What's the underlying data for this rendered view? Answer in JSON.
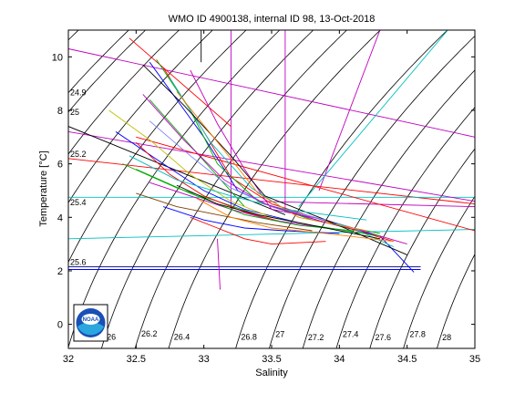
{
  "chart_data": {
    "type": "line",
    "title": "WMO ID 4900138, internal ID 98, 13-Oct-2018",
    "xlabel": "Salinity",
    "ylabel": "Temperature [°C]",
    "xlim": [
      32,
      35
    ],
    "ylim": [
      -0.9,
      11
    ],
    "xticks": [
      "32",
      "32.5",
      "33",
      "33.5",
      "34",
      "34.5",
      "35"
    ],
    "yticks": [
      "0",
      "2",
      "4",
      "6",
      "8",
      "10"
    ],
    "grid": false,
    "legend": "none",
    "density_contours": [
      {
        "label": "24.6",
        "value": 24.6
      },
      {
        "label": "24.9",
        "value": 24.9
      },
      {
        "label": "25",
        "value": 25.0
      },
      {
        "label": "25.2",
        "value": 25.2
      },
      {
        "label": "25.4",
        "value": 25.4
      },
      {
        "label": "25.6",
        "value": 25.6
      },
      {
        "label": "25.8",
        "value": 25.8
      },
      {
        "label": "26",
        "value": 26.0
      },
      {
        "label": "26.2",
        "value": 26.2
      },
      {
        "label": "26.4",
        "value": 26.4
      },
      {
        "label": "26.8",
        "value": 26.8
      },
      {
        "label": "27",
        "value": 27.0
      },
      {
        "label": "27.2",
        "value": 27.2
      },
      {
        "label": "27.4",
        "value": 27.4
      },
      {
        "label": "27.6",
        "value": 27.6
      },
      {
        "label": "27.8",
        "value": 27.8
      },
      {
        "label": "28",
        "value": 28.0
      }
    ],
    "contour_color": "#000000",
    "series_colors": [
      "#0000ff",
      "#ff0000",
      "#00aa00",
      "#00bfbf",
      "#bf00bf",
      "#bfbf00",
      "#000000",
      "#ff7f00",
      "#7f3f00",
      "#7f7fff"
    ],
    "series": [
      {
        "color": "#bf00bf",
        "points": [
          [
            32,
            10.3
          ],
          [
            35,
            7.0
          ]
        ]
      },
      {
        "color": "#ff0000",
        "points": [
          [
            32,
            6.2
          ],
          [
            35,
            4.5
          ]
        ]
      },
      {
        "color": "#00bfbf",
        "points": [
          [
            32,
            4.75
          ],
          [
            35,
            4.75
          ]
        ]
      },
      {
        "color": "#00bfbf",
        "points": [
          [
            32,
            3.2
          ],
          [
            35,
            3.55
          ]
        ]
      },
      {
        "color": "#000080",
        "points": [
          [
            32,
            2.15
          ],
          [
            34.6,
            2.15
          ]
        ]
      },
      {
        "color": "#0000ff",
        "points": [
          [
            32,
            2.05
          ],
          [
            34.6,
            2.05
          ]
        ]
      },
      {
        "color": "#bf00bf",
        "points": [
          [
            32,
            7.2
          ],
          [
            35,
            4.6
          ]
        ]
      },
      {
        "color": "#000000",
        "points": [
          [
            32,
            7.4
          ],
          [
            33.6,
            4.1
          ]
        ]
      },
      {
        "color": "#bf00bf",
        "points": [
          [
            33.6,
            4.2
          ],
          [
            33.6,
            11
          ]
        ]
      },
      {
        "color": "#bf00bf",
        "points": [
          [
            33.85,
            5.0
          ],
          [
            34.3,
            11
          ]
        ]
      },
      {
        "color": "#00bfbf",
        "points": [
          [
            33.7,
            4.4
          ],
          [
            34.8,
            11
          ]
        ]
      },
      {
        "color": "#bf00bf",
        "points": [
          [
            33.2,
            4.3
          ],
          [
            33.2,
            11
          ]
        ]
      },
      {
        "color": "#000000",
        "points": [
          [
            32.98,
            9.8
          ],
          [
            32.98,
            11
          ]
        ]
      },
      {
        "color": "#ff0000",
        "points": [
          [
            32.45,
            10.7
          ],
          [
            33.2,
            7.4
          ]
        ]
      },
      {
        "color": "#bf00bf",
        "points": [
          [
            33.1,
            3.2
          ],
          [
            33.12,
            1.3
          ]
        ]
      },
      {
        "color": "#bf00bf",
        "points": [
          [
            33.4,
            4.6
          ],
          [
            35,
            4.4
          ]
        ]
      },
      {
        "color": "#00aa00",
        "points": [
          [
            32.6,
            8.4
          ],
          [
            33.3,
            4.4
          ]
        ]
      },
      {
        "color": "#ff0000",
        "points": [
          [
            32.5,
            7.0
          ],
          [
            35,
            3.5
          ]
        ]
      },
      {
        "color": "#0000ff",
        "points": [
          [
            32.6,
            9.8
          ],
          [
            33.0,
            7.0
          ],
          [
            33.25,
            5.0
          ],
          [
            33.5,
            4.4
          ],
          [
            33.9,
            3.8
          ],
          [
            34.3,
            3.3
          ],
          [
            34.55,
            1.95
          ]
        ]
      },
      {
        "color": "#ff0000",
        "points": [
          [
            32.7,
            9.6
          ],
          [
            33.0,
            7.2
          ],
          [
            33.2,
            5.5
          ],
          [
            33.5,
            4.5
          ],
          [
            34.0,
            3.7
          ],
          [
            34.4,
            3.1
          ]
        ]
      },
      {
        "color": "#00aa00",
        "points": [
          [
            32.65,
            9.9
          ],
          [
            32.9,
            8.0
          ],
          [
            33.1,
            6.0
          ],
          [
            33.4,
            4.6
          ],
          [
            33.8,
            3.9
          ],
          [
            34.3,
            3.4
          ]
        ]
      },
      {
        "color": "#bf00bf",
        "points": [
          [
            32.9,
            9.5
          ],
          [
            33.1,
            7.5
          ],
          [
            33.3,
            5.8
          ],
          [
            33.5,
            4.3
          ],
          [
            33.9,
            3.9
          ],
          [
            34.5,
            3.0
          ]
        ]
      },
      {
        "color": "#00bfbf",
        "points": [
          [
            32.75,
            9.2
          ],
          [
            33.05,
            6.8
          ],
          [
            33.35,
            5.1
          ],
          [
            33.6,
            4.3
          ],
          [
            34.1,
            3.6
          ],
          [
            34.4,
            2.9
          ]
        ]
      },
      {
        "color": "#000000",
        "points": [
          [
            32.55,
            9.7
          ],
          [
            32.85,
            8.2
          ],
          [
            33.2,
            6.3
          ],
          [
            33.45,
            4.8
          ],
          [
            33.9,
            3.9
          ],
          [
            34.5,
            2.6
          ]
        ]
      },
      {
        "color": "#ff7f00",
        "points": [
          [
            32.8,
            8.7
          ],
          [
            33.15,
            6.5
          ],
          [
            33.4,
            4.9
          ],
          [
            33.7,
            4.0
          ],
          [
            34.2,
            3.5
          ]
        ]
      },
      {
        "color": "#0000ff",
        "points": [
          [
            32.35,
            7.2
          ],
          [
            32.7,
            6.0
          ],
          [
            33.0,
            5.0
          ],
          [
            33.3,
            4.3
          ],
          [
            33.7,
            3.8
          ]
        ]
      },
      {
        "color": "#00aa00",
        "points": [
          [
            32.4,
            6.0
          ],
          [
            32.8,
            5.1
          ],
          [
            33.1,
            4.6
          ],
          [
            33.4,
            4.1
          ],
          [
            33.8,
            3.7
          ],
          [
            34.3,
            3.3
          ]
        ]
      },
      {
        "color": "#ff0000",
        "points": [
          [
            32.5,
            6.8
          ],
          [
            32.75,
            5.6
          ],
          [
            33.0,
            4.8
          ],
          [
            33.3,
            4.2
          ],
          [
            33.6,
            3.8
          ]
        ]
      },
      {
        "color": "#bfbf00",
        "points": [
          [
            32.3,
            8.0
          ],
          [
            32.6,
            6.9
          ],
          [
            32.9,
            5.6
          ],
          [
            33.2,
            4.6
          ],
          [
            33.5,
            4.0
          ]
        ]
      },
      {
        "color": "#bf00bf",
        "points": [
          [
            32.6,
            5.3
          ],
          [
            32.9,
            4.8
          ],
          [
            33.2,
            4.3
          ],
          [
            33.5,
            3.9
          ],
          [
            33.9,
            3.6
          ]
        ]
      },
      {
        "color": "#7f3f00",
        "points": [
          [
            32.5,
            4.9
          ],
          [
            32.8,
            4.4
          ],
          [
            33.1,
            4.1
          ],
          [
            33.4,
            3.8
          ],
          [
            33.8,
            3.5
          ]
        ]
      },
      {
        "color": "#0000ff",
        "points": [
          [
            32.7,
            4.4
          ],
          [
            33.0,
            3.9
          ],
          [
            33.3,
            3.6
          ],
          [
            33.6,
            3.5
          ],
          [
            34.0,
            3.4
          ]
        ]
      },
      {
        "color": "#00bfbf",
        "points": [
          [
            32.45,
            6.3
          ],
          [
            32.8,
            5.4
          ],
          [
            33.2,
            4.8
          ],
          [
            33.6,
            4.3
          ],
          [
            34.2,
            3.9
          ]
        ]
      },
      {
        "color": "#ff0000",
        "points": [
          [
            32.9,
            4.0
          ],
          [
            33.1,
            3.6
          ],
          [
            33.3,
            3.2
          ],
          [
            33.5,
            3.0
          ],
          [
            33.9,
            3.1
          ]
        ]
      },
      {
        "color": "#00aa00",
        "points": [
          [
            32.5,
            5.8
          ],
          [
            32.9,
            4.9
          ],
          [
            33.3,
            4.1
          ],
          [
            33.7,
            3.7
          ],
          [
            34.1,
            3.5
          ]
        ]
      },
      {
        "color": "#7f7fff",
        "points": [
          [
            32.6,
            7.6
          ],
          [
            32.9,
            6.3
          ],
          [
            33.2,
            5.1
          ],
          [
            33.5,
            4.4
          ],
          [
            33.9,
            3.9
          ]
        ]
      },
      {
        "color": "#000000",
        "points": [
          [
            32.8,
            5.2
          ],
          [
            33.1,
            4.5
          ],
          [
            33.4,
            4.1
          ],
          [
            33.8,
            3.7
          ],
          [
            34.3,
            3.2
          ]
        ]
      },
      {
        "color": "#bf00bf",
        "points": [
          [
            32.55,
            8.6
          ],
          [
            32.85,
            6.9
          ],
          [
            33.15,
            5.4
          ],
          [
            33.45,
            4.5
          ],
          [
            33.9,
            3.8
          ]
        ]
      },
      {
        "color": "#ff7f00",
        "points": [
          [
            32.95,
            4.7
          ],
          [
            33.2,
            4.0
          ],
          [
            33.5,
            3.6
          ],
          [
            33.9,
            3.4
          ],
          [
            34.4,
            3.1
          ]
        ]
      }
    ]
  }
}
